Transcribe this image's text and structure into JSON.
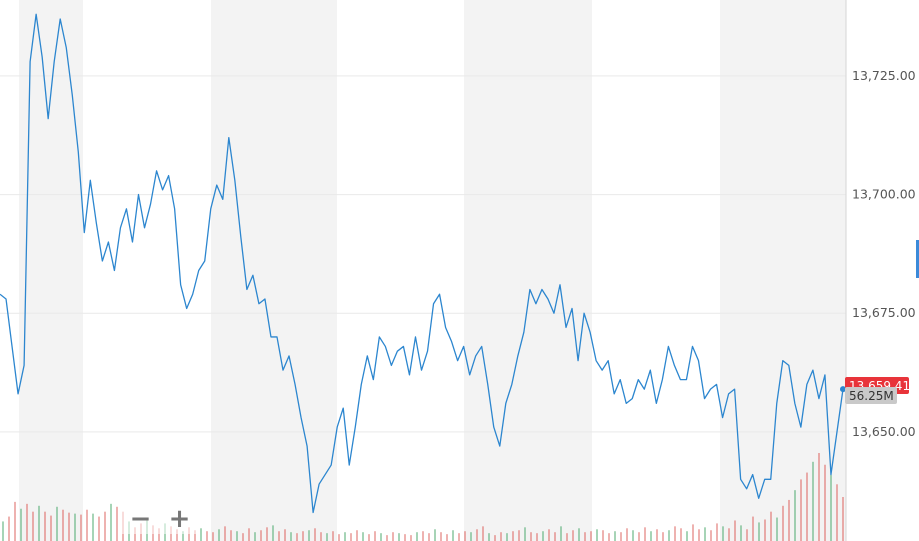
{
  "zoom": {
    "zoom_out_label": "−",
    "zoom_in_label": "+"
  },
  "badges": {
    "price_label": "13,659.41",
    "volume_label": "56.25M"
  },
  "colors": {
    "line": "#2c86cf",
    "band": "#f3f3f3",
    "grid": "#e9e9e9",
    "vol_up": "#3aa05e",
    "vol_down": "#d9534f",
    "price_badge": "#e8343a",
    "volume_badge": "#c9c9c9"
  },
  "chart_data": {
    "type": "line",
    "title": "",
    "xlabel": "",
    "ylabel": "",
    "y_ticks": [
      "13,650.00",
      "13,675.00",
      "13,700.00",
      "13,725.00"
    ],
    "ylim": [
      13627,
      13741
    ],
    "grid": true,
    "series": [
      {
        "values": [
          13679,
          13678,
          13668,
          13658,
          13664,
          13728,
          13738,
          13729,
          13716,
          13728,
          13737,
          13731,
          13721,
          13709,
          13692,
          13703,
          13694,
          13686,
          13690,
          13684,
          13693,
          13697,
          13690,
          13700,
          13693,
          13698,
          13705,
          13701,
          13704,
          13697,
          13681,
          13676,
          13679,
          13684,
          13686,
          13697,
          13702,
          13699,
          13712,
          13703,
          13691,
          13680,
          13683,
          13677,
          13678,
          13670,
          13670,
          13663,
          13666,
          13660,
          13653,
          13647,
          13633,
          13639,
          13641,
          13643,
          13651,
          13655,
          13643,
          13651,
          13660,
          13666,
          13661,
          13670,
          13668,
          13664,
          13667,
          13668,
          13662,
          13670,
          13663,
          13667,
          13677,
          13679,
          13672,
          13669,
          13665,
          13668,
          13662,
          13666,
          13668,
          13660,
          13651,
          13647,
          13656,
          13660,
          13666,
          13671,
          13680,
          13677,
          13680,
          13678,
          13675,
          13681,
          13672,
          13676,
          13665,
          13675,
          13671,
          13665,
          13663,
          13665,
          13658,
          13661,
          13656,
          13657,
          13661,
          13659,
          13663,
          13656,
          13661,
          13668,
          13664,
          13661,
          13661,
          13668,
          13665,
          13657,
          13659,
          13660,
          13653,
          13658,
          13659,
          13640,
          13638,
          13641,
          13636,
          13640,
          13640,
          13656,
          13665,
          13664,
          13656,
          13651,
          13660,
          13663,
          13657,
          13662,
          13641,
          13650,
          13659
        ]
      }
    ],
    "volume": {
      "values": [
        20,
        25,
        40,
        33,
        38,
        30,
        36,
        30,
        26,
        35,
        32,
        29,
        28,
        27,
        32,
        28,
        25,
        30,
        38,
        35,
        30,
        20,
        14,
        18,
        22,
        16,
        13,
        18,
        15,
        12,
        10,
        14,
        11,
        13,
        10,
        9,
        12,
        15,
        11,
        10,
        8,
        13,
        9,
        11,
        14,
        16,
        10,
        12,
        9,
        8,
        10,
        11,
        13,
        9,
        8,
        10,
        7,
        9,
        8,
        11,
        9,
        7,
        10,
        8,
        6,
        9,
        8,
        7,
        6,
        9,
        10,
        8,
        12,
        9,
        7,
        11,
        8,
        10,
        9,
        12,
        15,
        8,
        6,
        9,
        8,
        10,
        11,
        14,
        9,
        8,
        10,
        12,
        9,
        15,
        8,
        11,
        13,
        9,
        10,
        12,
        11,
        8,
        10,
        9,
        13,
        11,
        9,
        14,
        10,
        12,
        9,
        11,
        15,
        13,
        10,
        17,
        12,
        14,
        11,
        18,
        15,
        13,
        21,
        16,
        12,
        25,
        19,
        22,
        30,
        24,
        36,
        42,
        52,
        63,
        70,
        81,
        90,
        78,
        68,
        58,
        45
      ]
    }
  }
}
